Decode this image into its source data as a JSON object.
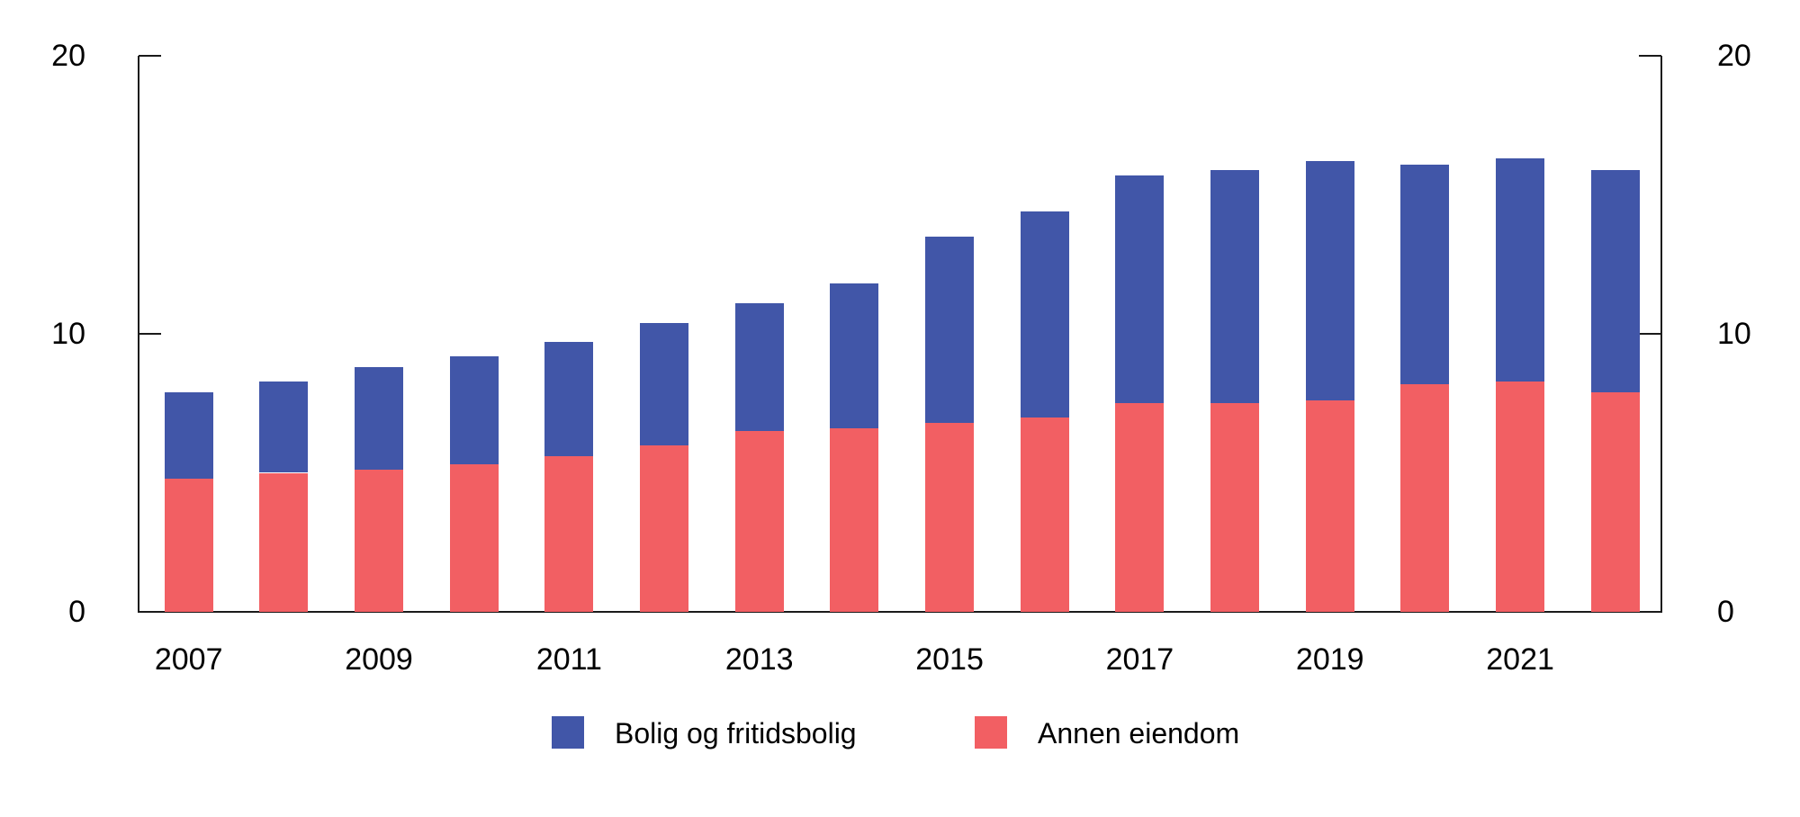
{
  "chart_data": {
    "type": "bar",
    "stacked": true,
    "title": "",
    "xlabel": "",
    "ylabel": "",
    "categories": [
      "2007",
      "2008",
      "2009",
      "2010",
      "2011",
      "2012",
      "2013",
      "2014",
      "2015",
      "2016",
      "2017",
      "2018",
      "2019",
      "2020",
      "2021",
      "2022"
    ],
    "series": [
      {
        "name": "Bolig og fritidsbolig",
        "color": "#4156a8",
        "values": [
          3.1,
          3.3,
          3.7,
          3.9,
          4.1,
          4.4,
          4.6,
          5.2,
          6.7,
          7.4,
          8.2,
          8.4,
          8.6,
          7.9,
          8.0,
          8.0
        ]
      },
      {
        "name": "Annen eiendom",
        "color": "#f25f63",
        "values": [
          4.8,
          5.0,
          5.1,
          5.3,
          5.6,
          6.0,
          6.5,
          6.6,
          6.8,
          7.0,
          7.5,
          7.5,
          7.6,
          8.2,
          8.3,
          7.9
        ]
      }
    ],
    "stack_bottom_to_top": [
      "Annen eiendom",
      "Bolig og fritidsbolig"
    ],
    "totals": [
      7.9,
      8.3,
      8.8,
      9.2,
      9.7,
      10.4,
      11.1,
      11.8,
      13.5,
      14.4,
      15.7,
      15.9,
      16.2,
      16.1,
      16.3,
      15.9
    ],
    "ylim": [
      0,
      20
    ],
    "yticks": [
      "0",
      "10",
      "20"
    ],
    "ytick_marks_at": [
      10,
      20
    ],
    "xtick_labels": [
      "2007",
      "2009",
      "2011",
      "2013",
      "2015",
      "2017",
      "2019",
      "2021"
    ],
    "grid": false,
    "dual_y_axis": true,
    "legend_position": "bottom"
  },
  "legend": {
    "items": [
      {
        "label": "Bolig og fritidsbolig",
        "color": "#4156a8"
      },
      {
        "label": "Annen eiendom",
        "color": "#f25f63"
      }
    ]
  }
}
